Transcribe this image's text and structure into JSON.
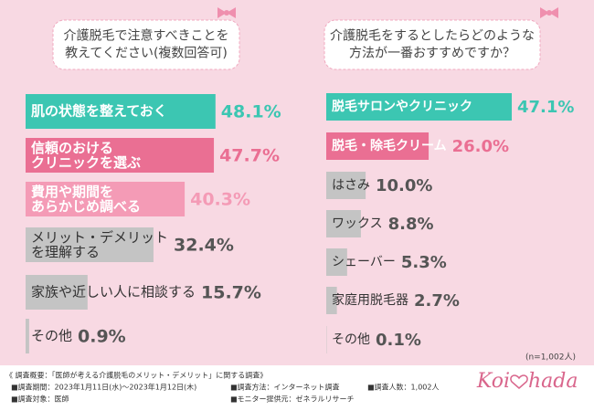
{
  "chart_data": [
    {
      "type": "bar",
      "orientation": "horizontal",
      "title": "介護脱毛で注意すべきことを\n教えてください(複数回答可)",
      "categories": [
        "肌の状態を整えておく",
        "信頼のおける\nクリニックを選ぶ",
        "費用や期間を\nあらかじめ調べる",
        "メリット・デメリット\nを理解する",
        "家族や近しい人に相談する",
        "その他"
      ],
      "values": [
        48.1,
        47.7,
        40.3,
        32.4,
        15.7,
        0.9
      ],
      "value_labels": [
        "48.1%",
        "47.7%",
        "40.3%",
        "32.4%",
        "15.7%",
        "0.9%"
      ],
      "colors": [
        "#3cc6b2",
        "#ea6f93",
        "#f49bb6",
        "#c4c4c4",
        "#c4c4c4",
        "#c4c4c4"
      ]
    },
    {
      "type": "bar",
      "orientation": "horizontal",
      "title": "介護脱毛をするとしたらどのような\n方法が一番おすすめですか？",
      "categories": [
        "脱毛サロンやクリニック",
        "脱毛・除毛クリーム",
        "はさみ",
        "ワックス",
        "シェーバー",
        "家庭用脱毛器",
        "その他"
      ],
      "values": [
        47.1,
        26.0,
        10.0,
        8.8,
        5.3,
        2.7,
        0.1
      ],
      "value_labels": [
        "47.1%",
        "26.0%",
        "10.0%",
        "8.8%",
        "5.3%",
        "2.7%",
        "0.1%"
      ],
      "colors": [
        "#3cc6b2",
        "#ea6f93",
        "#c4c4c4",
        "#c4c4c4",
        "#c4c4c4",
        "#c4c4c4",
        "#c4c4c4"
      ],
      "note": "(n=1,002人)"
    }
  ],
  "footer": {
    "heading": "《 調査概要：「医師が考える介護脱毛のメリット・デメリット」に関する調査》",
    "items": [
      "■調査期間：2023年1月11日(水)〜2023年1月12日(木)",
      "■調査方法：インターネット調査",
      "■調査人数：1,002人",
      "■調査対象：医師",
      "■モニター提供元：ゼネラルリサーチ"
    ]
  },
  "logo": [
    "Koi",
    "hada"
  ]
}
